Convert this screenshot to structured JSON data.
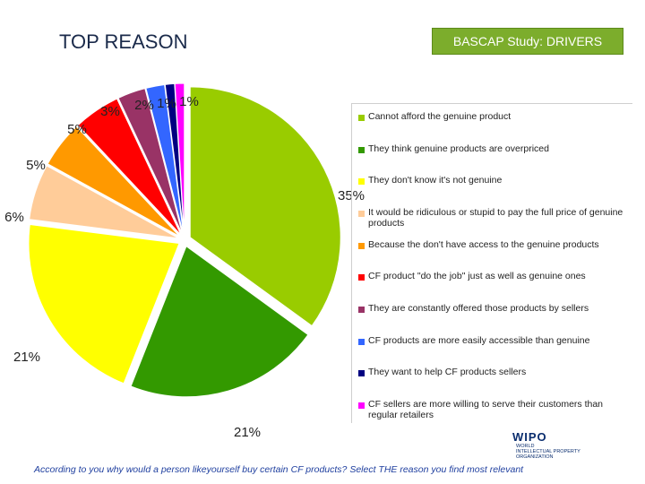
{
  "header": {
    "title": "TOP REASON",
    "badge": "BASCAP Study:  DRIVERS"
  },
  "footer": {
    "question": "According to you why would a person likeyourself buy certain CF products? Select THE  reason you find most relevant"
  },
  "logo": {
    "name": "WIPO",
    "subtitle_line1": "WORLD",
    "subtitle_line2": "INTELLECTUAL PROPERTY",
    "subtitle_line3": "ORGANIZATION"
  },
  "chart_data": {
    "type": "pie",
    "title": "",
    "legend_position": "right",
    "slices": [
      {
        "label": "Cannot afford the genuine product",
        "value": 35,
        "display": "35%",
        "color": "#99cc00"
      },
      {
        "label": "They think genuine products are overpriced",
        "value": 21,
        "display": "21%",
        "color": "#339900"
      },
      {
        "label": "They don't know it's not genuine",
        "value": 21,
        "display": "21%",
        "color": "#ffff00"
      },
      {
        "label": "It would be ridiculous or stupid to pay the full price of genuine products",
        "value": 6,
        "display": "6%",
        "color": "#ffcc99"
      },
      {
        "label": "Because the don't have access to the genuine products",
        "value": 5,
        "display": "5%",
        "color": "#ff9900"
      },
      {
        "label": "CF product \"do the job\" just as well as genuine ones",
        "value": 5,
        "display": "5%",
        "color": "#ff0000"
      },
      {
        "label": "They are constantly offered those products by sellers",
        "value": 3,
        "display": "3%",
        "color": "#993366"
      },
      {
        "label": "CF products are more easily accessible than genuine",
        "value": 2,
        "display": "2%",
        "color": "#3366ff"
      },
      {
        "label": "They want to help CF products sellers",
        "value": 1,
        "display": "1%",
        "color": "#000080"
      },
      {
        "label": "CF sellers are more willing to serve their customers than regular retailers",
        "value": 1,
        "display": "1%",
        "color": "#ff00ff"
      }
    ]
  }
}
